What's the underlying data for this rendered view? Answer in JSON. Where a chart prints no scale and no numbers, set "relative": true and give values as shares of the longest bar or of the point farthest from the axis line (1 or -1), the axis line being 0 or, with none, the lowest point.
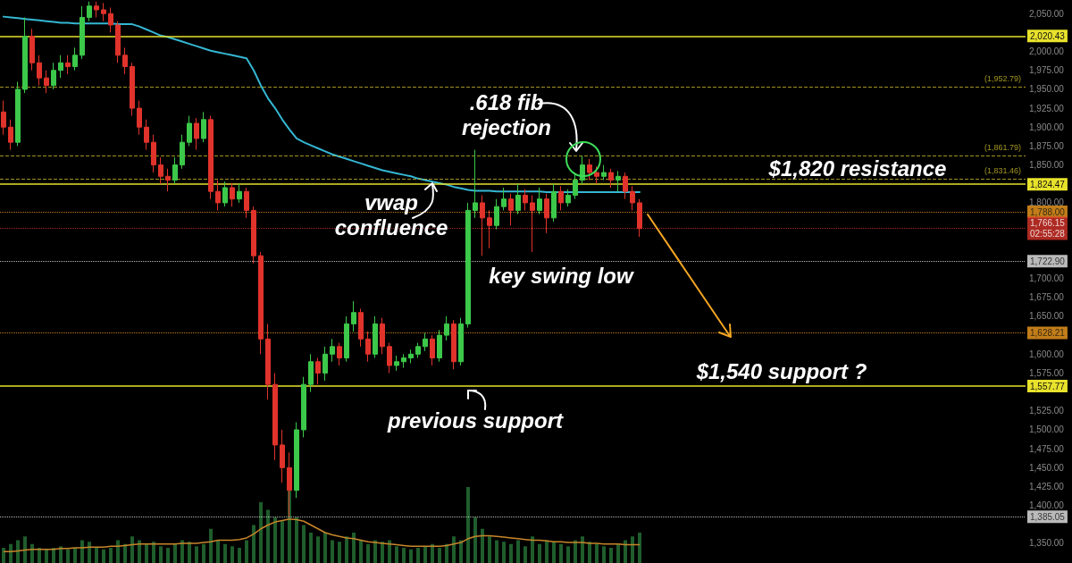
{
  "chart_data": [
    {
      "type": "candlestick",
      "tick_labels": "y",
      "categories": [
        null,
        null,
        null,
        null,
        null,
        null,
        null,
        null,
        null,
        null,
        null,
        null,
        null,
        null,
        null,
        null,
        null,
        null,
        null,
        null,
        null,
        null,
        null,
        null,
        null,
        null,
        null,
        null,
        null,
        null,
        null,
        null,
        null,
        null,
        null,
        null,
        null,
        null,
        null,
        null,
        null,
        null,
        null,
        null,
        null,
        null,
        null,
        null,
        null,
        null,
        null,
        null,
        null,
        null,
        null,
        null,
        null,
        null,
        null,
        null,
        null,
        null,
        null,
        null,
        null,
        null,
        null,
        null,
        null,
        null,
        null,
        null,
        null,
        null,
        null,
        null,
        null,
        null,
        null,
        null,
        null,
        null,
        null,
        null,
        null,
        null,
        null,
        null,
        null,
        null
      ],
      "ohlc": [
        [
          1920,
          1935,
          1890,
          1900
        ],
        [
          1900,
          1910,
          1870,
          1880
        ],
        [
          1880,
          1960,
          1875,
          1950
        ],
        [
          1950,
          2045,
          1945,
          2020
        ],
        [
          2020,
          2030,
          1975,
          1985
        ],
        [
          1985,
          1995,
          1955,
          1965
        ],
        [
          1965,
          1975,
          1945,
          1955
        ],
        [
          1955,
          1985,
          1950,
          1975
        ],
        [
          1975,
          1995,
          1965,
          1985
        ],
        [
          1985,
          1995,
          1970,
          1980
        ],
        [
          1980,
          2005,
          1975,
          1995
        ],
        [
          1995,
          2060,
          1990,
          2045
        ],
        [
          2045,
          2066,
          2040,
          2060
        ],
        [
          2060,
          2066,
          2045,
          2055
        ],
        [
          2055,
          2064,
          2040,
          2050
        ],
        [
          2050,
          2058,
          2025,
          2035
        ],
        [
          2035,
          2040,
          1985,
          1995
        ],
        [
          1995,
          2005,
          1970,
          1980
        ],
        [
          1980,
          1985,
          1915,
          1925
        ],
        [
          1925,
          1935,
          1890,
          1900
        ],
        [
          1900,
          1910,
          1870,
          1880
        ],
        [
          1880,
          1890,
          1840,
          1850
        ],
        [
          1850,
          1860,
          1825,
          1835
        ],
        [
          1835,
          1845,
          1815,
          1830
        ],
        [
          1830,
          1860,
          1825,
          1850
        ],
        [
          1850,
          1890,
          1845,
          1880
        ],
        [
          1880,
          1915,
          1875,
          1905
        ],
        [
          1905,
          1912,
          1870,
          1885
        ],
        [
          1885,
          1920,
          1880,
          1910
        ],
        [
          1910,
          1915,
          1805,
          1815
        ],
        [
          1815,
          1830,
          1790,
          1800
        ],
        [
          1800,
          1828,
          1795,
          1820
        ],
        [
          1820,
          1826,
          1795,
          1805
        ],
        [
          1805,
          1825,
          1800,
          1815
        ],
        [
          1815,
          1820,
          1780,
          1790
        ],
        [
          1790,
          1795,
          1720,
          1730
        ],
        [
          1730,
          1735,
          1600,
          1620
        ],
        [
          1620,
          1640,
          1540,
          1560
        ],
        [
          1560,
          1575,
          1460,
          1480
        ],
        [
          1480,
          1500,
          1430,
          1450
        ],
        [
          1450,
          1470,
          1385,
          1420
        ],
        [
          1420,
          1510,
          1410,
          1500
        ],
        [
          1500,
          1570,
          1490,
          1560
        ],
        [
          1560,
          1600,
          1550,
          1590
        ],
        [
          1590,
          1595,
          1560,
          1575
        ],
        [
          1575,
          1610,
          1565,
          1600
        ],
        [
          1600,
          1620,
          1590,
          1610
        ],
        [
          1610,
          1615,
          1585,
          1595
        ],
        [
          1595,
          1650,
          1590,
          1640
        ],
        [
          1640,
          1670,
          1630,
          1655
        ],
        [
          1655,
          1660,
          1610,
          1620
        ],
        [
          1620,
          1630,
          1590,
          1600
        ],
        [
          1600,
          1650,
          1595,
          1640
        ],
        [
          1640,
          1648,
          1600,
          1610
        ],
        [
          1610,
          1615,
          1575,
          1585
        ],
        [
          1585,
          1598,
          1578,
          1590
        ],
        [
          1590,
          1600,
          1582,
          1595
        ],
        [
          1595,
          1606,
          1588,
          1600
        ],
        [
          1600,
          1615,
          1595,
          1610
        ],
        [
          1610,
          1628,
          1604,
          1620
        ],
        [
          1620,
          1625,
          1585,
          1595
        ],
        [
          1595,
          1632,
          1590,
          1625
        ],
        [
          1625,
          1650,
          1618,
          1640
        ],
        [
          1640,
          1645,
          1580,
          1590
        ],
        [
          1590,
          1648,
          1585,
          1640
        ],
        [
          1640,
          1800,
          1635,
          1790
        ],
        [
          1790,
          1870,
          1780,
          1800
        ],
        [
          1800,
          1810,
          1730,
          1780
        ],
        [
          1780,
          1790,
          1740,
          1770
        ],
        [
          1770,
          1805,
          1765,
          1795
        ],
        [
          1795,
          1820,
          1790,
          1805
        ],
        [
          1805,
          1812,
          1770,
          1790
        ],
        [
          1790,
          1825,
          1785,
          1810
        ],
        [
          1810,
          1818,
          1790,
          1800
        ],
        [
          1800,
          1810,
          1735,
          1790
        ],
        [
          1790,
          1820,
          1785,
          1805
        ],
        [
          1805,
          1812,
          1760,
          1780
        ],
        [
          1780,
          1825,
          1775,
          1815
        ],
        [
          1815,
          1822,
          1790,
          1800
        ],
        [
          1800,
          1818,
          1795,
          1810
        ],
        [
          1810,
          1840,
          1805,
          1830
        ],
        [
          1830,
          1862,
          1825,
          1850
        ],
        [
          1850,
          1858,
          1830,
          1840
        ],
        [
          1840,
          1848,
          1825,
          1835
        ],
        [
          1835,
          1850,
          1830,
          1840
        ],
        [
          1840,
          1845,
          1820,
          1830
        ],
        [
          1830,
          1842,
          1815,
          1835
        ],
        [
          1835,
          1840,
          1805,
          1815
        ],
        [
          1815,
          1822,
          1790,
          1800
        ],
        [
          1800,
          1805,
          1755,
          1766
        ]
      ],
      "series": [
        {
          "type": "line",
          "color": "#35b7d3",
          "values": [
            2046,
            2045,
            2044,
            2043,
            2042,
            2041,
            2040,
            2039,
            2038,
            2038,
            2037,
            2037,
            2037,
            2037,
            2037,
            2037,
            2036,
            2036,
            2036,
            2033,
            2029,
            2025,
            2021,
            2019,
            2016,
            2013,
            2010,
            2007,
            2004,
            2001,
            1999,
            1997,
            1995,
            1993,
            1991,
            1975,
            1955,
            1938,
            1925,
            1910,
            1897,
            1885,
            1880,
            1876,
            1872,
            1868,
            1864,
            1861,
            1858,
            1855,
            1852,
            1849,
            1846,
            1843,
            1841,
            1839,
            1837,
            1835,
            1832,
            1830,
            1828,
            1826,
            1824,
            1821,
            1819,
            1817,
            1816,
            1816,
            1816,
            1815,
            1815,
            1815,
            1815,
            1815,
            1815,
            1815,
            1814,
            1814,
            1814,
            1814,
            1814,
            1814,
            1814,
            1814,
            1814,
            1814,
            1814,
            1814,
            1814,
            1814
          ]
        }
      ],
      "ylim": [
        1324,
        2068
      ],
      "yticks": [
        {
          "value": 1350,
          "label": "1,350.00"
        },
        {
          "value": 1400,
          "label": "1,400.00"
        },
        {
          "value": 1425,
          "label": "1,425.00"
        },
        {
          "value": 1450,
          "label": "1,450.00"
        },
        {
          "value": 1475,
          "label": "1,475.00"
        },
        {
          "value": 1500,
          "label": "1,500.00"
        },
        {
          "value": 1525,
          "label": "1,525.00"
        },
        {
          "value": 1575,
          "label": "1,575.00"
        },
        {
          "value": 1600,
          "label": "1,600.00"
        },
        {
          "value": 1650,
          "label": "1,650.00"
        },
        {
          "value": 1675,
          "label": "1,675.00"
        },
        {
          "value": 1700,
          "label": "1,700.00"
        },
        {
          "value": 1800,
          "label": "1,800.00"
        },
        {
          "value": 1850,
          "label": "1,850.00"
        },
        {
          "value": 1875,
          "label": "1,875.00"
        },
        {
          "value": 1900,
          "label": "1,900.00"
        },
        {
          "value": 1925,
          "label": "1,925.00"
        },
        {
          "value": 1950,
          "label": "1,950.00"
        },
        {
          "value": 1975,
          "label": "1,975.00"
        },
        {
          "value": 2000,
          "label": "2,000.00"
        },
        {
          "value": 2050,
          "label": "2,050.00"
        }
      ],
      "ref_lines": [
        {
          "axis": "y",
          "value": 2020.43,
          "label": "2,020.43",
          "color": "#e8e22c",
          "line_style": "solid"
        },
        {
          "axis": "y",
          "value": 1824.47,
          "label": "1,824.47",
          "color": "#e8e22c",
          "line_style": "solid"
        },
        {
          "axis": "y",
          "value": 1557.77,
          "label": "1,557.77",
          "color": "#e8e22c",
          "line_style": "solid"
        },
        {
          "axis": "y",
          "value": 1722.9,
          "label": "1,722.90",
          "color": "#e8e8e8",
          "line_style": "dotted"
        },
        {
          "axis": "y",
          "value": 1385.05,
          "label": "1,385.05",
          "color": "#e8e8e8",
          "line_style": "dotted"
        },
        {
          "axis": "y",
          "value": 1788,
          "label": "1,788.00",
          "color": "#f39c1f",
          "line_style": "dotted"
        },
        {
          "axis": "y",
          "value": 1628.21,
          "label": "1,628.21",
          "color": "#f39c1f",
          "line_style": "dotted"
        },
        {
          "axis": "y",
          "value": 1766.15,
          "label": "1,766.15\n02:55:28",
          "color": "#d8342a",
          "line_style": "dotted"
        },
        {
          "axis": "y",
          "value": 1952.79,
          "label": "(1,952.79)",
          "color": "#c9b928",
          "line_style": "dashed"
        },
        {
          "axis": "y",
          "value": 1861.79,
          "label": "(1,861.79)",
          "color": "#c9b928",
          "line_style": "dashed"
        },
        {
          "axis": "y",
          "value": 1831.46,
          "label": "(1,831.46)",
          "color": "#c9b928",
          "line_style": "dashed"
        }
      ],
      "annotations": [
        ".618 fib\nrejection",
        "$1,820 resistance",
        "vwap\nconfluence",
        "key swing low",
        "$1,540 support ?",
        "previous support"
      ]
    },
    {
      "type": "bar",
      "relative": true,
      "tick_labels": false,
      "categories": [
        null,
        null,
        null,
        null,
        null,
        null,
        null,
        null,
        null,
        null,
        null,
        null,
        null,
        null,
        null,
        null,
        null,
        null,
        null,
        null,
        null,
        null,
        null,
        null,
        null,
        null,
        null,
        null,
        null,
        null,
        null,
        null,
        null,
        null,
        null,
        null,
        null,
        null,
        null,
        null,
        null,
        null,
        null,
        null,
        null,
        null,
        null,
        null,
        null,
        null,
        null,
        null,
        null,
        null,
        null,
        null,
        null,
        null,
        null,
        null,
        null,
        null,
        null,
        null,
        null,
        null,
        null,
        null,
        null,
        null,
        null,
        null,
        null,
        null,
        null,
        null,
        null,
        null,
        null,
        null,
        null,
        null,
        null,
        null,
        null,
        null,
        null,
        null,
        null,
        null
      ],
      "series": [
        {
          "type": "bar",
          "color": "#1f5d2c",
          "values": [
            0.2,
            0.25,
            0.3,
            0.35,
            0.25,
            0.2,
            0.18,
            0.2,
            0.22,
            0.18,
            0.2,
            0.3,
            0.28,
            0.2,
            0.18,
            0.2,
            0.3,
            0.25,
            0.35,
            0.3,
            0.25,
            0.28,
            0.22,
            0.2,
            0.25,
            0.3,
            0.28,
            0.22,
            0.25,
            0.45,
            0.3,
            0.25,
            0.22,
            0.2,
            0.3,
            0.5,
            0.8,
            0.7,
            0.6,
            0.55,
            0.95,
            0.6,
            0.5,
            0.4,
            0.35,
            0.4,
            0.3,
            0.28,
            0.35,
            0.4,
            0.3,
            0.25,
            0.3,
            0.28,
            0.3,
            0.22,
            0.2,
            0.18,
            0.2,
            0.22,
            0.25,
            0.2,
            0.25,
            0.35,
            0.3,
            1,
            0.6,
            0.45,
            0.35,
            0.3,
            0.28,
            0.25,
            0.3,
            0.22,
            0.35,
            0.25,
            0.3,
            0.28,
            0.25,
            0.22,
            0.3,
            0.35,
            0.28,
            0.25,
            0.22,
            0.2,
            0.25,
            0.3,
            0.35,
            0.4
          ]
        },
        {
          "type": "line",
          "color": "#c8862a",
          "values": [
            0.15,
            0.15,
            0.16,
            0.17,
            0.18,
            0.18,
            0.18,
            0.18,
            0.19,
            0.19,
            0.2,
            0.2,
            0.21,
            0.21,
            0.21,
            0.22,
            0.22,
            0.23,
            0.24,
            0.25,
            0.25,
            0.25,
            0.25,
            0.25,
            0.25,
            0.26,
            0.26,
            0.26,
            0.27,
            0.28,
            0.3,
            0.3,
            0.3,
            0.31,
            0.33,
            0.38,
            0.45,
            0.5,
            0.54,
            0.56,
            0.58,
            0.57,
            0.55,
            0.5,
            0.45,
            0.4,
            0.37,
            0.35,
            0.33,
            0.32,
            0.3,
            0.28,
            0.27,
            0.26,
            0.25,
            0.24,
            0.23,
            0.22,
            0.22,
            0.22,
            0.22,
            0.22,
            0.23,
            0.25,
            0.27,
            0.32,
            0.35,
            0.36,
            0.36,
            0.35,
            0.34,
            0.33,
            0.32,
            0.31,
            0.3,
            0.3,
            0.29,
            0.28,
            0.28,
            0.27,
            0.27,
            0.27,
            0.26,
            0.26,
            0.25,
            0.25,
            0.25,
            0.24,
            0.24,
            0.24
          ]
        }
      ]
    }
  ]
}
